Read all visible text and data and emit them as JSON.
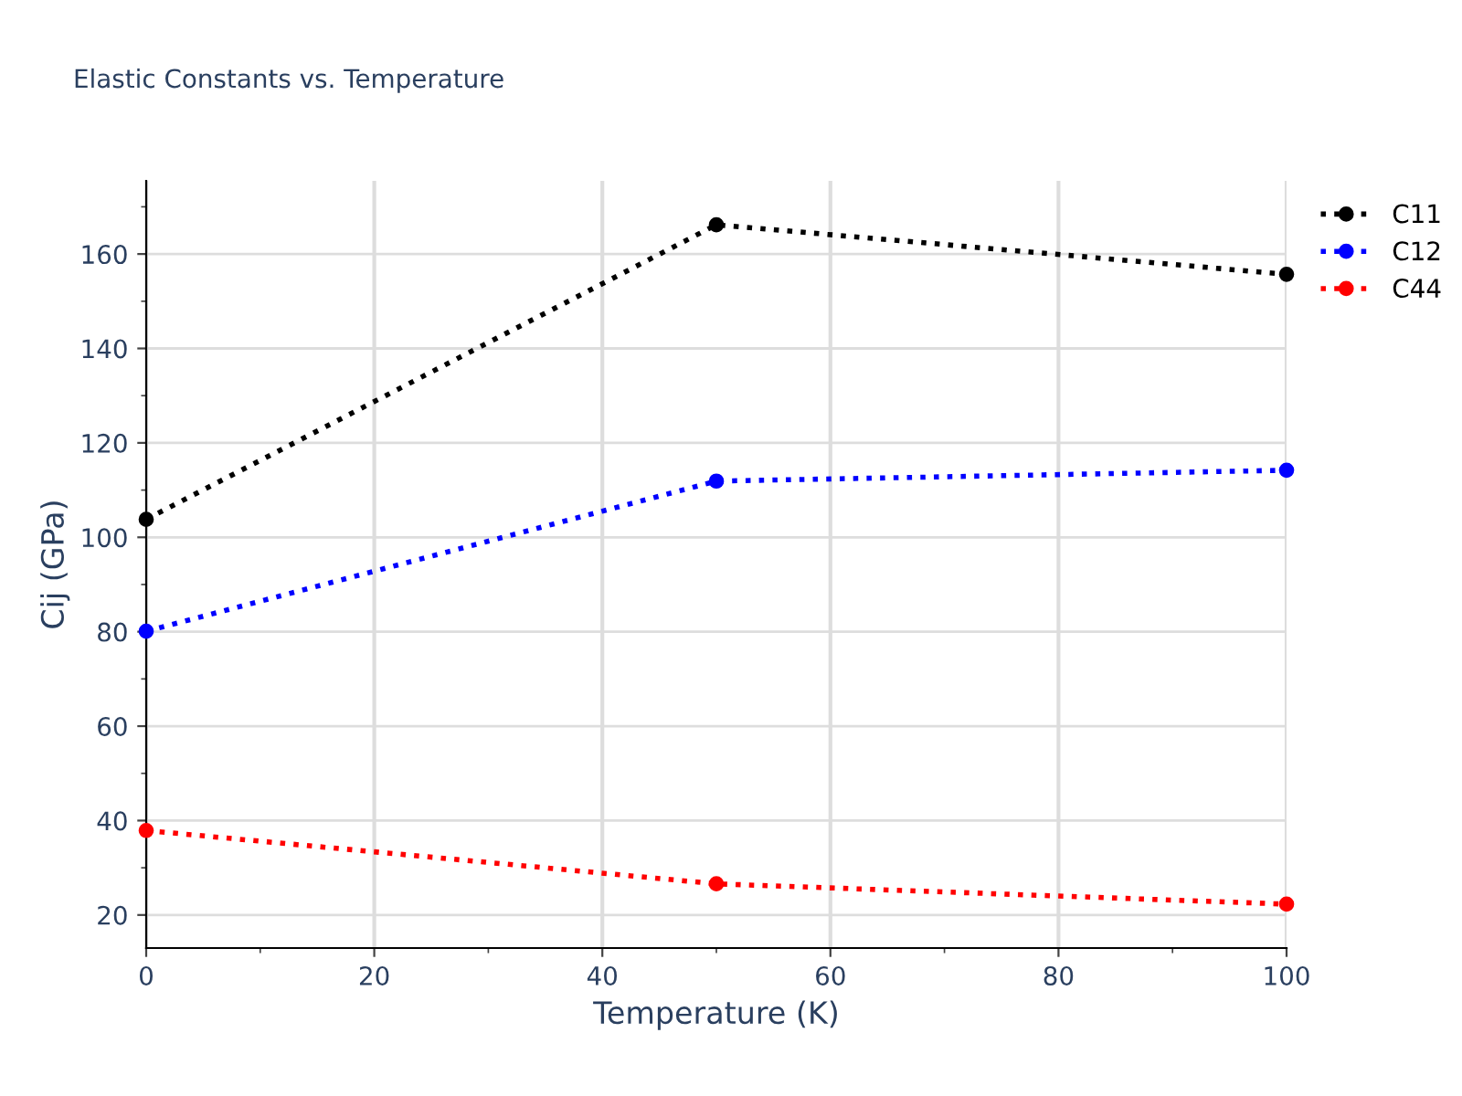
{
  "chart_data": {
    "type": "line",
    "title": "Elastic Constants vs. Temperature",
    "xlabel": "Temperature (K)",
    "ylabel": "Cij (GPa)",
    "x": [
      0,
      50,
      100
    ],
    "series": [
      {
        "name": "C11",
        "color": "#000000",
        "values": [
          103.8,
          166.2,
          155.7
        ]
      },
      {
        "name": "C12",
        "color": "#0000ff",
        "values": [
          80.1,
          111.9,
          114.2
        ]
      },
      {
        "name": "C44",
        "color": "#ff0000",
        "values": [
          37.9,
          26.6,
          22.3
        ]
      }
    ],
    "xlim": [
      0,
      100
    ],
    "xticks": [
      0,
      20,
      40,
      60,
      80,
      100
    ],
    "ylim": [
      13,
      175.5
    ],
    "yticks": [
      20,
      40,
      60,
      80,
      100,
      120,
      140,
      160
    ],
    "grid": true,
    "legend": "top right",
    "marker": "circle",
    "line_style": "dotted"
  }
}
